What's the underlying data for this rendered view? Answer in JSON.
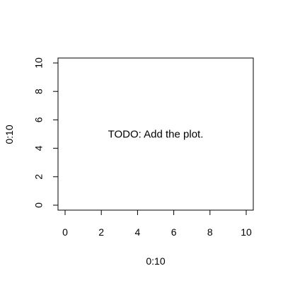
{
  "chart_data": {
    "type": "scatter",
    "x": [],
    "y": [],
    "xlabel": "0:10",
    "ylabel": "0:10",
    "xlim": [
      0,
      10
    ],
    "ylim": [
      0,
      10
    ],
    "x_ticks": [
      "0",
      "2",
      "4",
      "6",
      "8",
      "10"
    ],
    "y_ticks": [
      "0",
      "2",
      "4",
      "6",
      "8",
      "10"
    ],
    "grid": false,
    "annotation": {
      "text": "TODO: Add the plot.",
      "x": 5,
      "y": 5
    }
  }
}
